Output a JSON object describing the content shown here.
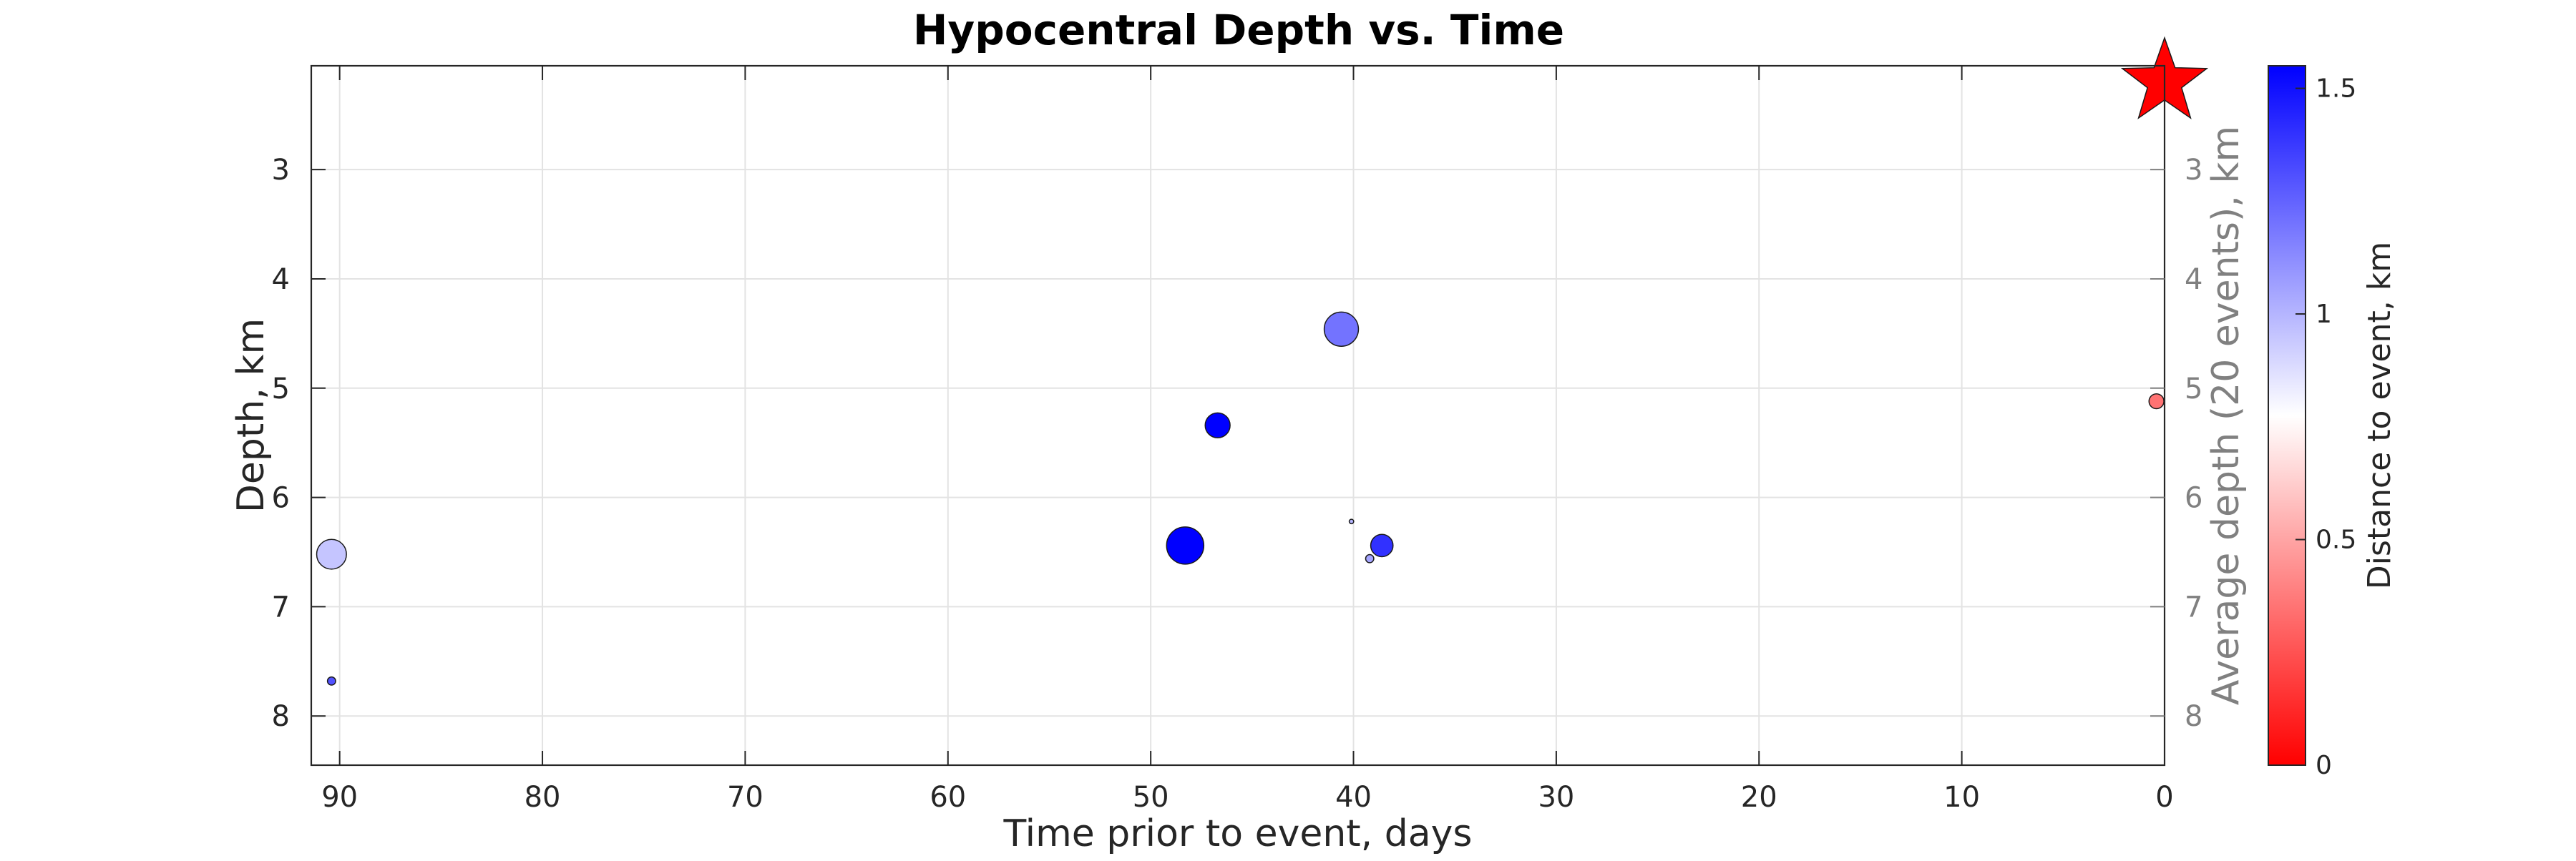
{
  "chart_data": {
    "type": "scatter",
    "title": "Hypocentral Depth vs. Time",
    "xlabel": "Time prior to event, days",
    "ylabel": "Depth, km",
    "ylabel_right": "Average depth (20 events), km",
    "xlim": [
      91.4,
      0
    ],
    "ylim": [
      2.05,
      8.45
    ],
    "y_reversed": true,
    "x_reversed": true,
    "grid": true,
    "xticks": [
      "90",
      "80",
      "70",
      "60",
      "50",
      "40",
      "30",
      "20",
      "10",
      "0"
    ],
    "yticks": [
      "3",
      "4",
      "5",
      "6",
      "7",
      "8"
    ],
    "yticks_right": [
      "3",
      "4",
      "5",
      "6",
      "7",
      "8"
    ],
    "colorbar": {
      "label": "Distance to event, km",
      "ticks": [
        "0",
        "0.5",
        "1",
        "1.5"
      ],
      "range": [
        0,
        1.55
      ],
      "colormap": [
        "#ff0000",
        "#ffffff",
        "#0000ff"
      ]
    },
    "mainshock": {
      "marker": "star",
      "time_days": 0,
      "depth_km": 2.2,
      "color": "#ff0000"
    },
    "points": [
      {
        "time_days": 90.4,
        "depth_km": 6.52,
        "distance_km": 0.95,
        "size_rel": 0.8
      },
      {
        "time_days": 90.4,
        "depth_km": 7.68,
        "distance_km": 1.3,
        "size_rel": 0.22
      },
      {
        "time_days": 48.3,
        "depth_km": 6.44,
        "distance_km": 1.55,
        "size_rel": 1.0
      },
      {
        "time_days": 46.7,
        "depth_km": 5.34,
        "distance_km": 1.55,
        "size_rel": 0.67
      },
      {
        "time_days": 40.6,
        "depth_km": 4.46,
        "distance_km": 1.2,
        "size_rel": 0.92
      },
      {
        "time_days": 40.1,
        "depth_km": 6.22,
        "distance_km": 1.0,
        "size_rel": 0.12
      },
      {
        "time_days": 39.2,
        "depth_km": 6.56,
        "distance_km": 1.05,
        "size_rel": 0.22
      },
      {
        "time_days": 38.6,
        "depth_km": 6.44,
        "distance_km": 1.4,
        "size_rel": 0.6
      },
      {
        "time_days": 0.4,
        "depth_km": 5.12,
        "distance_km": 0.35,
        "size_rel": 0.4
      }
    ]
  }
}
